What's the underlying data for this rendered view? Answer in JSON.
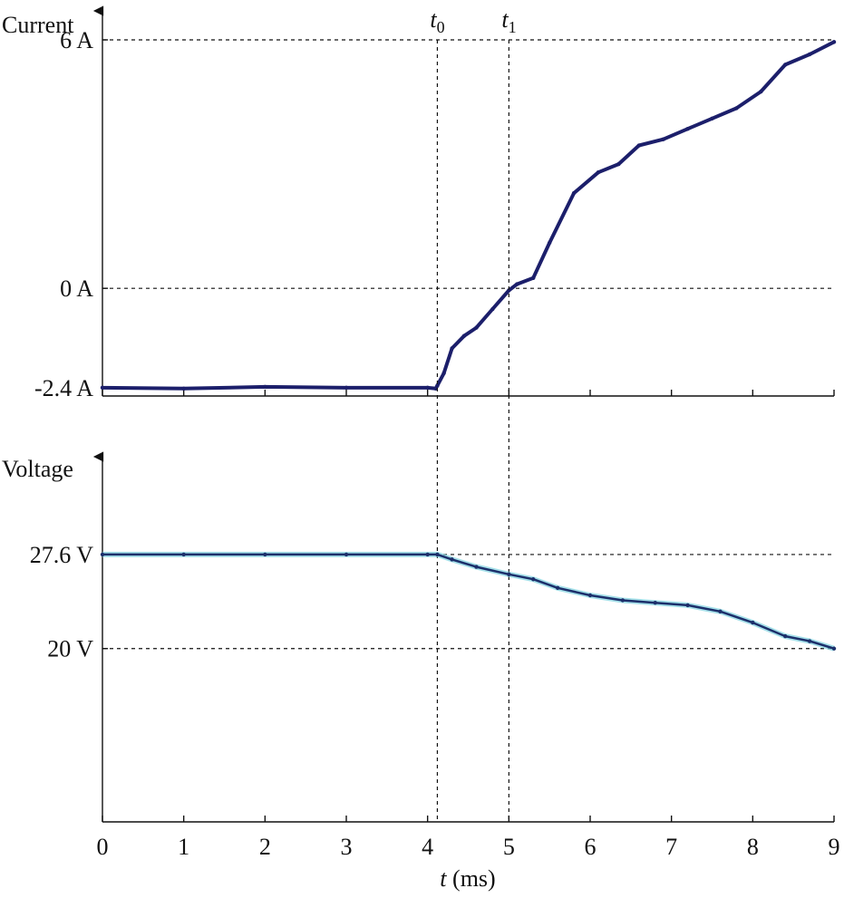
{
  "chart_data": [
    {
      "type": "line",
      "ylabel": "Current",
      "ytick_labels": [
        "6 A",
        "0 A",
        "-2.4 A"
      ],
      "ytick_values": [
        6,
        0,
        -2.4
      ],
      "xlim": [
        0,
        9
      ],
      "ylim": [
        -2.6,
        6.7
      ],
      "markers": [
        {
          "label": "t",
          "sub": "0",
          "x": 4.12
        },
        {
          "label": "t",
          "sub": "1",
          "x": 5.0
        }
      ],
      "series": [
        {
          "color": "#1c1f6b",
          "x": [
            0,
            1,
            2,
            3,
            4,
            4.1,
            4.12,
            4.2,
            4.3,
            4.45,
            4.6,
            4.8,
            5.0,
            5.1,
            5.3,
            5.5,
            5.8,
            6.1,
            6.35,
            6.6,
            6.9,
            7.2,
            7.5,
            7.8,
            8.1,
            8.4,
            8.7,
            9.0
          ],
          "y": [
            -2.4,
            -2.42,
            -2.38,
            -2.4,
            -2.4,
            -2.42,
            -2.35,
            -2.05,
            -1.45,
            -1.15,
            -0.95,
            -0.5,
            -0.05,
            0.1,
            0.25,
            1.1,
            2.3,
            2.8,
            3.0,
            3.45,
            3.6,
            3.85,
            4.1,
            4.35,
            4.75,
            5.4,
            5.65,
            5.95
          ]
        }
      ]
    },
    {
      "type": "line",
      "ylabel": "Voltage",
      "xlabel_var": "t",
      "xlabel_unit": " (ms)",
      "xticks": [
        0,
        1,
        2,
        3,
        4,
        5,
        6,
        7,
        8,
        9
      ],
      "xtick_labels": [
        "0",
        "1",
        "2",
        "3",
        "4",
        "5",
        "6",
        "7",
        "8",
        "9"
      ],
      "ytick_labels": [
        "27.6 V",
        "20 V"
      ],
      "ytick_values": [
        27.6,
        20
      ],
      "xlim": [
        0,
        9
      ],
      "ylim": [
        6,
        35.5
      ],
      "series": [
        {
          "color": "#1c2f6b",
          "x": [
            0,
            1,
            2,
            3,
            4,
            4.12,
            4.3,
            4.6,
            5.0,
            5.3,
            5.6,
            6.0,
            6.4,
            6.8,
            7.2,
            7.6,
            8.0,
            8.4,
            8.7,
            9.0
          ],
          "y": [
            27.6,
            27.6,
            27.6,
            27.6,
            27.6,
            27.6,
            27.2,
            26.6,
            26.0,
            25.6,
            24.9,
            24.3,
            23.9,
            23.7,
            23.5,
            23.0,
            22.1,
            21.0,
            20.6,
            20.0
          ]
        }
      ]
    }
  ]
}
